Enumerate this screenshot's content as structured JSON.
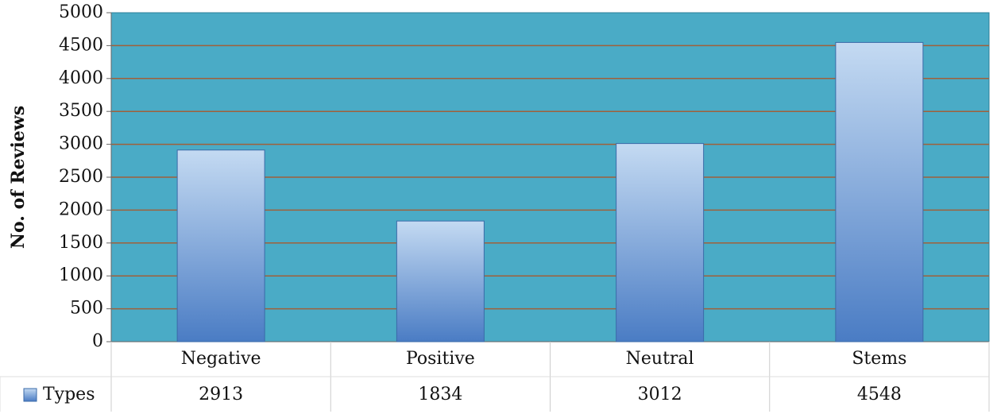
{
  "chart_data": {
    "type": "bar",
    "y_label": "No. of Reviews",
    "categories": [
      "Negative",
      "Positive",
      "Neutral",
      "Stems"
    ],
    "series": [
      {
        "name": "Types",
        "color": "#4a7cc4",
        "values": [
          2913,
          1834,
          3012,
          4548
        ]
      }
    ],
    "ylim": [
      0,
      5000
    ],
    "yticks": [
      0,
      500,
      1000,
      1500,
      2000,
      2500,
      3000,
      3500,
      4000,
      4500,
      5000
    ],
    "grid": true,
    "grid_color": "#a0603a",
    "plot_background": "#4aabc6",
    "data_table": true
  }
}
